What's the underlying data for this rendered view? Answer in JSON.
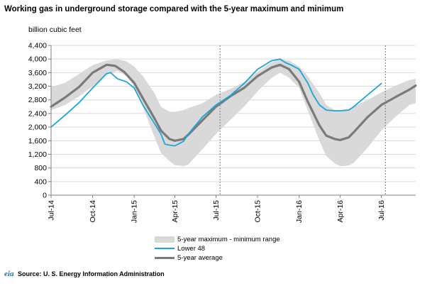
{
  "chart_data": {
    "type": "line",
    "title": "Working gas in underground storage compared with the  5-year maximum and minimum",
    "ylabel": "billion cubic feet",
    "ylim": [
      0,
      4400
    ],
    "y_ticks": [
      0,
      400,
      800,
      1200,
      1600,
      2000,
      2400,
      2800,
      3200,
      3600,
      4000,
      4400
    ],
    "y_tick_labels": [
      "0",
      "400",
      "800",
      "1,200",
      "1,600",
      "2,000",
      "2,400",
      "2,800",
      "3,200",
      "3,600",
      "4,000",
      "4,400"
    ],
    "x_ticks": [
      "2014-07-01",
      "2014-10-01",
      "2015-01-01",
      "2015-04-01",
      "2015-07-01",
      "2015-10-01",
      "2016-01-01",
      "2016-04-01",
      "2016-07-01"
    ],
    "x_tick_labels": [
      "Jul-14",
      "Oct-14",
      "Jan-15",
      "Apr-15",
      "Jul-15",
      "Oct-15",
      "Jan-16",
      "Apr-16",
      "Jul-16"
    ],
    "xlim": [
      "2014-07-01",
      "2016-09-15"
    ],
    "grid": true,
    "dashed_markers": [
      "2015-07-10",
      "2016-07-10"
    ],
    "legend": [
      "5-year maximum - minimum range",
      "Lower 48",
      "5-year average"
    ],
    "legend_placement": "bottom",
    "colors": {
      "range": "#d9d9d9",
      "lower48": "#1aa6db",
      "average": "#7a7a7a",
      "grid": "#d9d9d9"
    },
    "series": [
      {
        "name": "5-year maximum - minimum range",
        "kind": "band",
        "x": [
          "2014-07-01",
          "2014-08-01",
          "2014-09-01",
          "2014-10-01",
          "2014-11-01",
          "2014-11-25",
          "2014-12-15",
          "2015-01-01",
          "2015-01-20",
          "2015-02-15",
          "2015-03-01",
          "2015-03-20",
          "2015-04-01",
          "2015-04-20",
          "2015-05-01",
          "2015-06-01",
          "2015-07-01",
          "2015-08-01",
          "2015-09-01",
          "2015-10-01",
          "2015-11-01",
          "2015-11-20",
          "2015-12-10",
          "2016-01-01",
          "2016-01-20",
          "2016-02-15",
          "2016-03-01",
          "2016-03-20",
          "2016-04-01",
          "2016-04-20",
          "2016-05-01",
          "2016-06-01",
          "2016-07-01",
          "2016-08-01",
          "2016-09-01",
          "2016-09-15"
        ],
        "max": [
          3180,
          3300,
          3560,
          3820,
          3960,
          4000,
          3930,
          3780,
          3500,
          3000,
          2600,
          2450,
          2450,
          2500,
          2560,
          2700,
          2950,
          3120,
          3320,
          3620,
          3900,
          4000,
          3950,
          3780,
          3500,
          3000,
          2650,
          2500,
          2500,
          2540,
          2600,
          2800,
          3020,
          3220,
          3380,
          3420
        ],
        "min": [
          2500,
          2650,
          2900,
          3200,
          3550,
          3650,
          3500,
          3200,
          2600,
          1700,
          1250,
          1000,
          880,
          850,
          900,
          1350,
          1800,
          2200,
          2600,
          3050,
          3450,
          3600,
          3450,
          3150,
          2500,
          1600,
          1150,
          930,
          850,
          870,
          950,
          1400,
          1900,
          2300,
          2650,
          2700
        ]
      },
      {
        "name": "Lower 48",
        "x": [
          "2014-07-01",
          "2014-08-01",
          "2014-09-01",
          "2014-10-01",
          "2014-11-01",
          "2014-11-10",
          "2014-11-25",
          "2014-12-15",
          "2015-01-01",
          "2015-01-20",
          "2015-02-15",
          "2015-03-01",
          "2015-03-10",
          "2015-03-20",
          "2015-04-01",
          "2015-04-20",
          "2015-05-01",
          "2015-06-01",
          "2015-07-01",
          "2015-08-01",
          "2015-09-01",
          "2015-10-01",
          "2015-11-01",
          "2015-11-20",
          "2015-12-01",
          "2015-12-15",
          "2016-01-01",
          "2016-01-20",
          "2016-02-01",
          "2016-02-15",
          "2016-03-01",
          "2016-03-20",
          "2016-04-01",
          "2016-04-20",
          "2016-05-01",
          "2016-06-01",
          "2016-07-01"
        ],
        "values": [
          2000,
          2350,
          2720,
          3150,
          3570,
          3600,
          3420,
          3330,
          3150,
          2650,
          2100,
          1800,
          1500,
          1470,
          1450,
          1580,
          1800,
          2300,
          2650,
          2920,
          3280,
          3700,
          3950,
          4000,
          3900,
          3820,
          3700,
          3300,
          2950,
          2650,
          2500,
          2480,
          2480,
          2500,
          2600,
          2950,
          3280
        ]
      },
      {
        "name": "5-year average",
        "x": [
          "2014-07-01",
          "2014-08-01",
          "2014-09-01",
          "2014-10-01",
          "2014-11-01",
          "2014-11-20",
          "2014-12-10",
          "2015-01-01",
          "2015-01-20",
          "2015-02-15",
          "2015-03-01",
          "2015-03-20",
          "2015-04-01",
          "2015-04-20",
          "2015-05-01",
          "2015-06-01",
          "2015-07-01",
          "2015-08-01",
          "2015-09-01",
          "2015-10-01",
          "2015-11-01",
          "2015-11-20",
          "2015-12-10",
          "2016-01-01",
          "2016-01-20",
          "2016-02-15",
          "2016-03-01",
          "2016-03-20",
          "2016-04-01",
          "2016-04-20",
          "2016-05-01",
          "2016-06-01",
          "2016-07-01",
          "2016-08-01",
          "2016-09-01",
          "2016-09-15"
        ],
        "values": [
          2600,
          2870,
          3180,
          3600,
          3830,
          3800,
          3620,
          3300,
          2850,
          2250,
          1900,
          1650,
          1600,
          1650,
          1780,
          2200,
          2600,
          2900,
          3150,
          3500,
          3750,
          3830,
          3700,
          3330,
          2750,
          2050,
          1750,
          1650,
          1620,
          1700,
          1850,
          2300,
          2650,
          2880,
          3100,
          3220
        ]
      }
    ]
  },
  "source": {
    "logo_text": "eia",
    "text": "Source:  U. S. Energy Information Administration"
  }
}
